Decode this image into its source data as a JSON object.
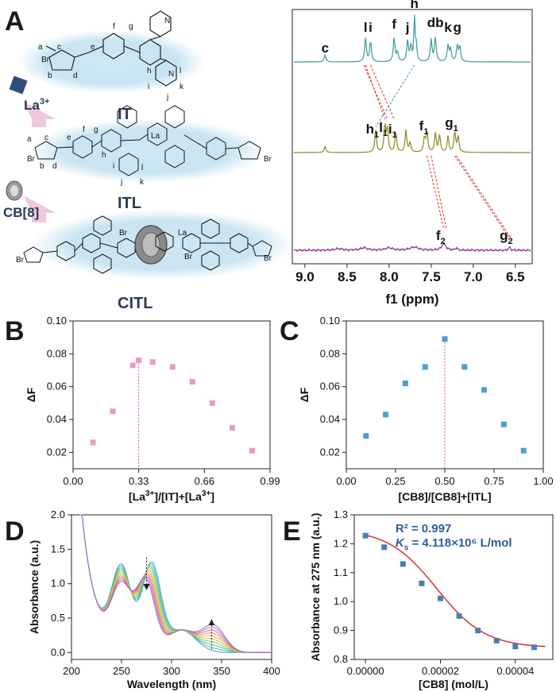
{
  "panels": {
    "A": "A",
    "B": "B",
    "C": "C",
    "D": "D",
    "E": "E"
  },
  "colors": {
    "nmr_it": "#3a9a9a",
    "nmr_itl": "#8a8a20",
    "nmr_citl": "#8a2a8a",
    "pink": "#e89ac4",
    "blue": "#4aa0d0",
    "red_dash": "#e03030",
    "blue_dash": "#3090d0",
    "fit": "#e02020",
    "marker_e": "#4a7fb5",
    "glow": "#bfe0f0",
    "arrow": "#f1c7dd"
  },
  "panel_a": {
    "molecules": {
      "it": "IT",
      "itl": "ITL",
      "citl": "CITL"
    },
    "reagents": {
      "la": "La",
      "la_sup": "3+",
      "cb": "CB[8]"
    },
    "atoms": {
      "a": "a",
      "b": "b",
      "c": "c",
      "d": "d",
      "e": "e",
      "f": "f",
      "g": "g",
      "h": "h",
      "i": "i",
      "j": "j",
      "k": "k",
      "l": "l",
      "br": "Br",
      "br_minus": "Br",
      "n": "N",
      "la_atom": "La",
      "minus": "−",
      "plus": "+",
      "three_plus": "3+"
    },
    "nmr": {
      "xlabel": "f1 (ppm)",
      "ticks": [
        "9.0",
        "8.5",
        "8.0",
        "7.5",
        "7.0",
        "6.5"
      ],
      "it_labels": [
        {
          "t": "c",
          "ppm": 8.76
        },
        {
          "t": "l",
          "ppm": 8.28
        },
        {
          "t": "i",
          "ppm": 8.22
        },
        {
          "t": "f",
          "ppm": 7.94
        },
        {
          "t": "j",
          "ppm": 7.78
        },
        {
          "t": "h",
          "ppm": 7.7
        },
        {
          "t": "db",
          "ppm": 7.45
        },
        {
          "t": "k",
          "ppm": 7.3
        },
        {
          "t": "g",
          "ppm": 7.19
        }
      ],
      "itl_labels": [
        {
          "t": "h",
          "s": "1",
          "ppm": 8.16
        },
        {
          "t": "l",
          "s": "1",
          "ppm": 8.03
        },
        {
          "t": "i",
          "s": "1",
          "ppm": 7.92
        },
        {
          "t": "f",
          "s": "1",
          "ppm": 7.55
        },
        {
          "t": "g",
          "s": "1",
          "ppm": 7.22
        }
      ],
      "citl_labels": [
        {
          "t": "f",
          "s": "2",
          "ppm": 7.35
        },
        {
          "t": "g",
          "s": "2",
          "ppm": 6.57
        }
      ]
    }
  },
  "chart_data": [
    {
      "type": "scatter",
      "panel": "B",
      "xlabel": "[La3+]/[IT]+[La3+]",
      "xlabel_parts": [
        "[La",
        "3+",
        "]/[IT]+[La",
        "3+",
        "]"
      ],
      "ylabel": "ΔF",
      "xlim": [
        0,
        0.99
      ],
      "ylim": [
        0.01,
        0.1
      ],
      "xticks": [
        "0.00",
        "0.33",
        "0.66",
        "0.99"
      ],
      "yticks": [
        "0.02",
        "0.04",
        "0.06",
        "0.08",
        "0.10"
      ],
      "x": [
        0.1,
        0.2,
        0.3,
        0.33,
        0.4,
        0.5,
        0.6,
        0.7,
        0.8,
        0.9
      ],
      "y": [
        0.026,
        0.045,
        0.073,
        0.076,
        0.075,
        0.072,
        0.063,
        0.05,
        0.035,
        0.021
      ],
      "vline": 0.33
    },
    {
      "type": "scatter",
      "panel": "C",
      "xlabel": "[CB8]/[CB8]+[ITL]",
      "ylabel": "ΔF",
      "xlim": [
        0,
        1.0
      ],
      "ylim": [
        0.01,
        0.1
      ],
      "xticks": [
        "0.00",
        "0.25",
        "0.50",
        "0.75",
        "1.00"
      ],
      "yticks": [
        "0.02",
        "0.04",
        "0.06",
        "0.08",
        "0.10"
      ],
      "x": [
        0.1,
        0.2,
        0.3,
        0.4,
        0.5,
        0.6,
        0.7,
        0.8,
        0.9
      ],
      "y": [
        0.03,
        0.043,
        0.062,
        0.072,
        0.089,
        0.072,
        0.058,
        0.037,
        0.021
      ],
      "vline": 0.5
    },
    {
      "type": "line",
      "panel": "D",
      "xlabel": "Wavelength (nm)",
      "ylabel": "Absorbance (a.u.)",
      "xlim": [
        200,
        400
      ],
      "ylim": [
        -0.1,
        2.0
      ],
      "xticks": [
        "200",
        "250",
        "300",
        "350",
        "400"
      ],
      "yticks": [
        "0.0",
        "0.5",
        "1.0",
        "1.5",
        "2.0"
      ],
      "n_series": 10,
      "peak1": {
        "start": 1.16,
        "end": 0.88
      },
      "peak2": {
        "start": 1.26,
        "end": 1.0
      },
      "band3": {
        "start": 0.0,
        "end": 0.38
      }
    },
    {
      "type": "scatter",
      "panel": "E",
      "xlabel": "[CB8] (mol/L)",
      "ylabel": "Absorbance at 275 nm (a.u.)",
      "xlim": [
        -3e-06,
        5e-05
      ],
      "ylim": [
        0.8,
        1.3
      ],
      "xticks": [
        "0.00000",
        "0.00002",
        "0.00004"
      ],
      "yticks": [
        "0.8",
        "0.9",
        "1.0",
        "1.1",
        "1.2",
        "1.3"
      ],
      "x": [
        0.0,
        5e-06,
        1e-05,
        1.5e-05,
        2e-05,
        2.5e-05,
        3e-05,
        3.5e-05,
        4e-05,
        4.5e-05
      ],
      "y": [
        1.228,
        1.188,
        1.13,
        1.063,
        1.011,
        0.95,
        0.9,
        0.865,
        0.845,
        0.842
      ],
      "r2": "R² = 0.997",
      "ks_k": "K",
      "ks_s": "s",
      "ks_rest": " = 4.118×10⁶ L/mol"
    }
  ]
}
